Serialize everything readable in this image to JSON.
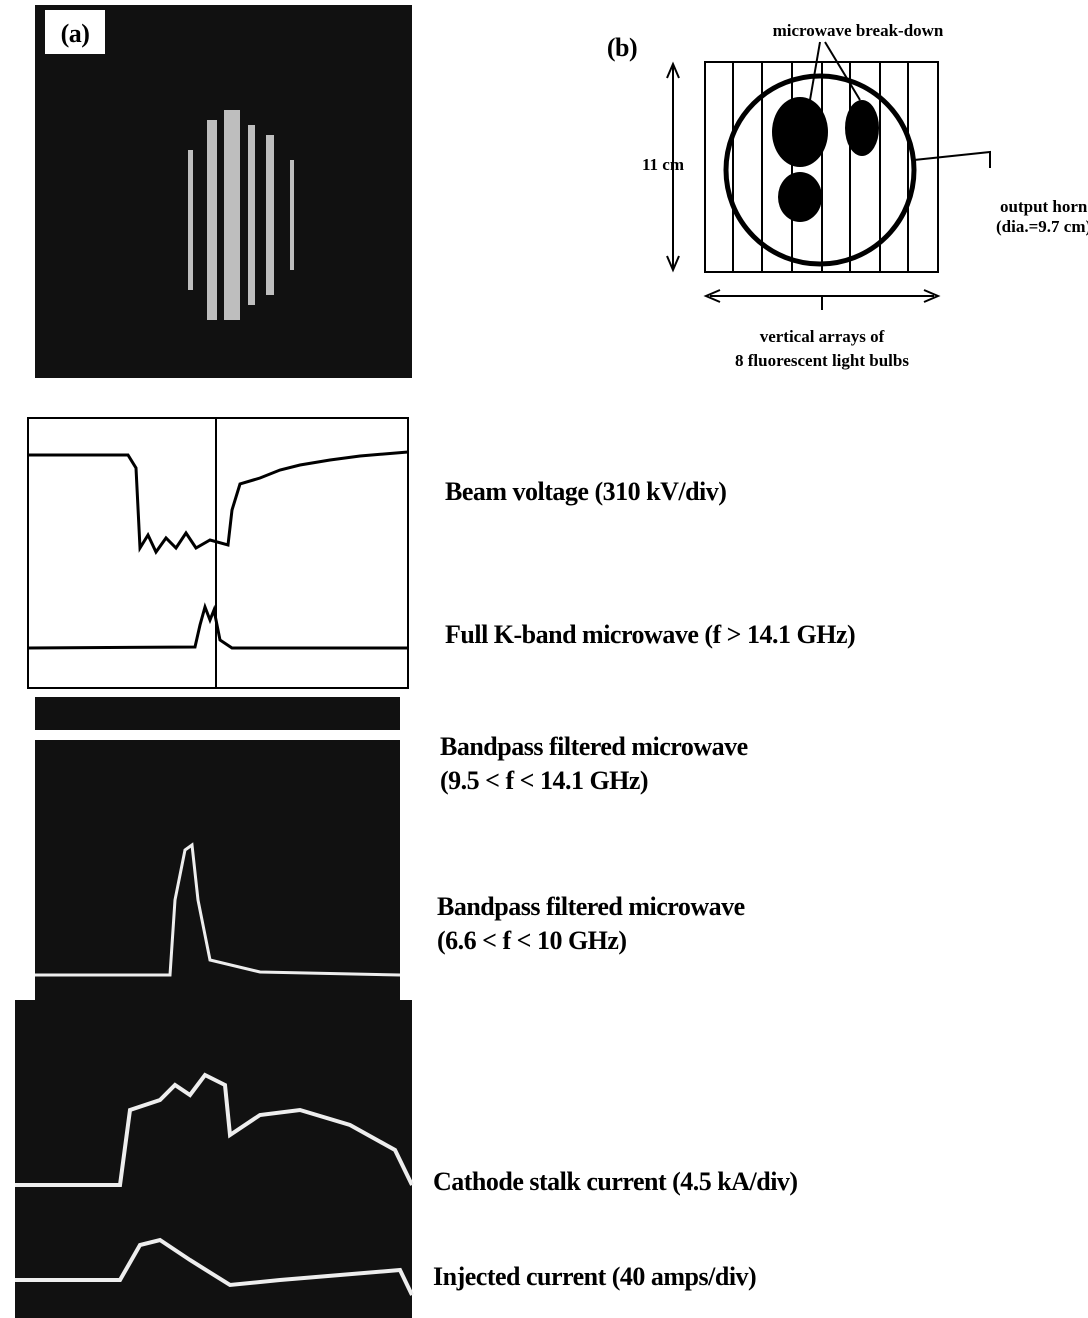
{
  "panel_a": {
    "label": "(a)"
  },
  "panel_b": {
    "label": "(b)",
    "breakdown": "microwave break-down",
    "height": "11 cm",
    "horn": [
      "output horn",
      "(dia.=9.7 cm)"
    ],
    "bulbs": [
      "vertical arrays of",
      "8 fluorescent light bulbs"
    ]
  },
  "traces": [
    {
      "label": [
        "Beam voltage (310 kV/div)"
      ]
    },
    {
      "label": [
        "Full K-band microwave (f > 14.1 GHz)"
      ]
    },
    {
      "label": [
        "Bandpass filtered microwave",
        "(9.5 < f < 14.1 GHz)"
      ]
    },
    {
      "label": [
        "Bandpass filtered microwave",
        "(6.6 < f < 10 GHz)"
      ]
    },
    {
      "label": [
        "Cathode stalk current (4.5 kA/div)"
      ]
    },
    {
      "label": [
        "Injected current (40 amps/div)"
      ]
    }
  ]
}
